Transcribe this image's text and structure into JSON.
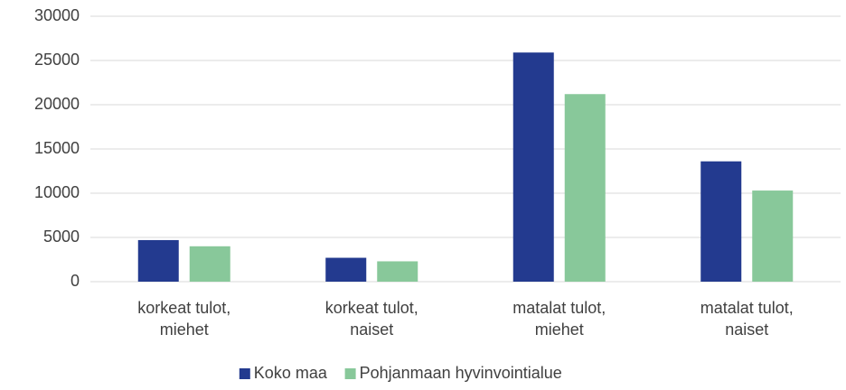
{
  "chart_data": {
    "type": "bar",
    "categories": [
      "korkeat tulot, miehet",
      "korkeat tulot, naiset",
      "matalat tulot, miehet",
      "matalat tulot, naiset"
    ],
    "series": [
      {
        "name": "Koko maa",
        "color": "#233a8f",
        "values": [
          4700,
          2700,
          25900,
          13600
        ]
      },
      {
        "name": "Pohjanmaan hyvinvointialue",
        "color": "#88c89a",
        "values": [
          4000,
          2300,
          21200,
          10300
        ]
      }
    ],
    "ylim": [
      0,
      30000
    ],
    "yticks": [
      0,
      5000,
      10000,
      15000,
      20000,
      25000,
      30000
    ],
    "grid": true,
    "legend": "bottom"
  }
}
